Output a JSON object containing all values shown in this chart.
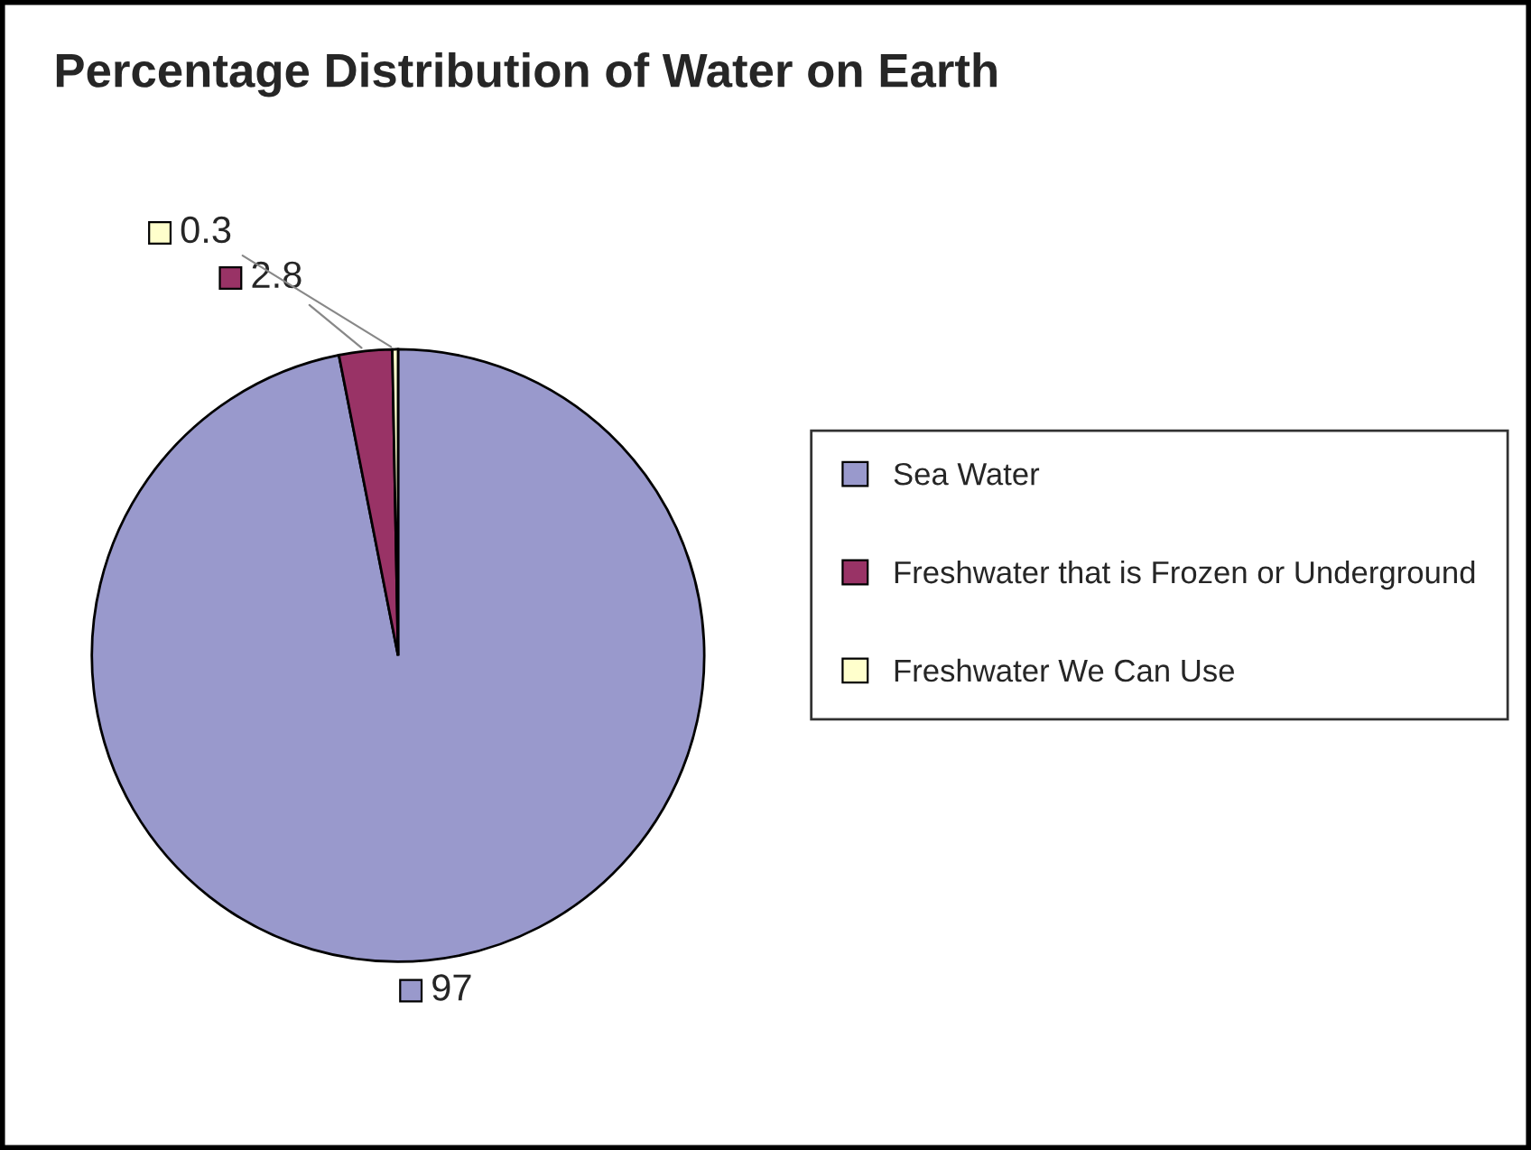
{
  "chart_data": {
    "type": "pie",
    "title": "Percentage Distribution of Water on Earth",
    "categories": [
      "Sea Water",
      "Freshwater that is Frozen or Underground",
      "Freshwater We Can Use"
    ],
    "values": [
      97,
      2.8,
      0.3
    ],
    "colors": [
      "#9999cc",
      "#993366",
      "#ffffcc"
    ],
    "data_labels": true,
    "legend": "right"
  }
}
